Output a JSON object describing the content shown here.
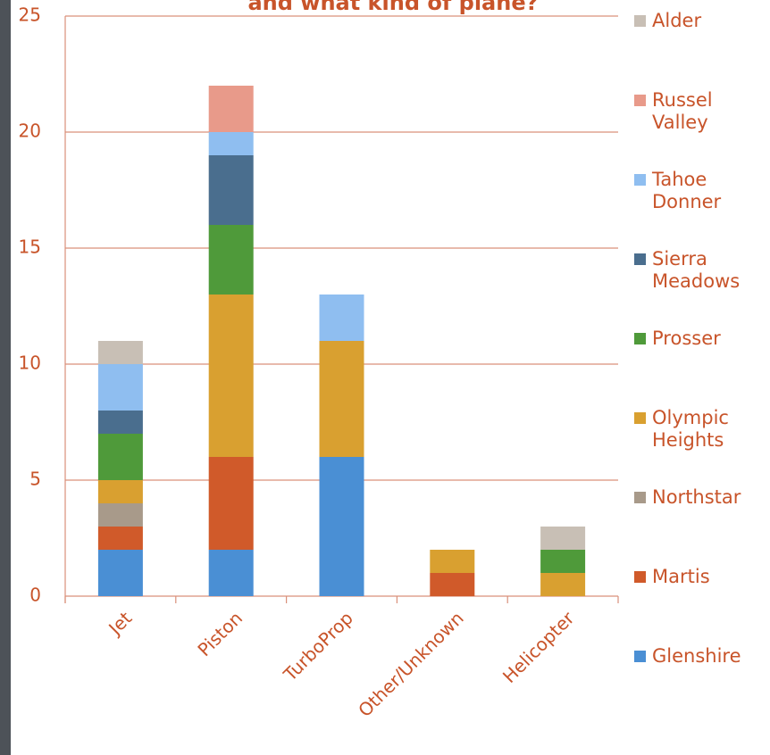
{
  "chart_data": {
    "type": "stacked_bar",
    "title": "and what kind of plane?",
    "categories": [
      "Jet",
      "Piston",
      "TurboProp",
      "Other/Unknown",
      "Helicopter"
    ],
    "series": [
      {
        "name": "Glenshire",
        "color": "#4a8fd4",
        "values": [
          2,
          2,
          6,
          0,
          0
        ]
      },
      {
        "name": "Martis",
        "color": "#d05a2a",
        "values": [
          1,
          4,
          0,
          1,
          0
        ]
      },
      {
        "name": "Northstar",
        "color": "#a89a8a",
        "values": [
          1,
          0,
          0,
          0,
          0
        ]
      },
      {
        "name": "Olympic Heights",
        "color": "#d9a030",
        "values": [
          1,
          7,
          5,
          1,
          1
        ]
      },
      {
        "name": "Prosser",
        "color": "#4f9a3a",
        "values": [
          2,
          3,
          0,
          0,
          1
        ]
      },
      {
        "name": "Sierra Meadows",
        "color": "#4a6e8e",
        "values": [
          1,
          3,
          0,
          0,
          0
        ]
      },
      {
        "name": "Tahoe Donner",
        "color": "#8fbef0",
        "values": [
          2,
          1,
          2,
          0,
          0
        ]
      },
      {
        "name": "Russel Valley",
        "color": "#e89a8a",
        "values": [
          0,
          2,
          0,
          0,
          0
        ]
      },
      {
        "name": "Alder",
        "color": "#c8bfb5",
        "values": [
          1,
          0,
          0,
          0,
          1
        ]
      }
    ],
    "ylim": [
      0,
      25
    ],
    "yticks": [
      0,
      5,
      10,
      15,
      20,
      25
    ],
    "grid": true,
    "legend": "right"
  }
}
